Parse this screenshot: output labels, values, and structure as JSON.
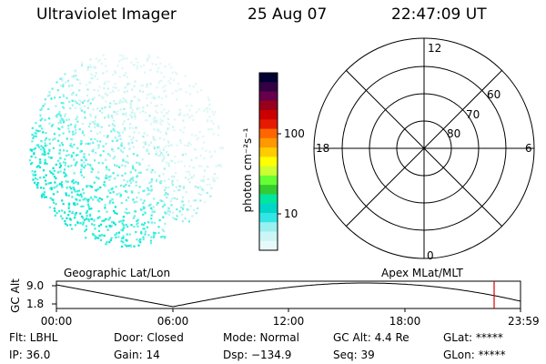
{
  "header": {
    "title": "Ultraviolet Imager",
    "date": "25 Aug 07",
    "time": "22:47:09 UT"
  },
  "colorbar": {
    "unit_label": "photon cm⁻²s⁻¹",
    "tick_labels": [
      "100",
      "10"
    ],
    "colors": [
      "#000033",
      "#330044",
      "#66004d",
      "#99001a",
      "#cc0000",
      "#e61a00",
      "#ff6600",
      "#ff9900",
      "#ffcc00",
      "#ffff00",
      "#ccff33",
      "#66ff33",
      "#33cc33",
      "#00e6a0",
      "#00d6c8",
      "#33e6e6",
      "#99f0f0",
      "#ccf5f5",
      "#e6fafa"
    ]
  },
  "polar_plot": {
    "clock_labels": {
      "top": "12",
      "left": "18",
      "right": "6",
      "bottom": "0"
    },
    "lat_labels": [
      "60",
      "70",
      "80"
    ]
  },
  "timeline": {
    "ylabel": "GC Alt",
    "ytick_high": "9.0",
    "ytick_low": "1.8",
    "left_label": "Geographic Lat/Lon",
    "right_label": "Apex MLat/MLT",
    "x_ticks": [
      "00:00",
      "06:00",
      "12:00",
      "18:00",
      "23:59"
    ],
    "marker_color": "#dd0000"
  },
  "info": {
    "flt": "Flt: LBHL",
    "ip": "IP: 36.0",
    "door": "Door: Closed",
    "gain": "Gain: 14",
    "mode": "Mode: Normal",
    "dsp": "Dsp: −134.9",
    "gc_alt": "GC Alt: 4.4 Re",
    "seq": "Seq: 39",
    "glat": "GLat: *****",
    "glon": "GLon: *****"
  }
}
